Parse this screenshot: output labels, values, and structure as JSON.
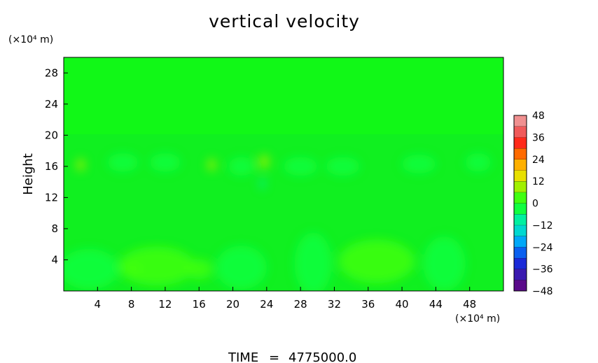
{
  "chart_data": {
    "type": "heatmap",
    "title": "vertical velocity",
    "ylabel": "Height",
    "xlabel": "",
    "x_unit": "(×10⁴ m)",
    "y_unit": "(×10⁴ m)",
    "xlim": [
      0,
      52
    ],
    "ylim": [
      0,
      30
    ],
    "x_ticks": [
      "4",
      "8",
      "12",
      "16",
      "20",
      "24",
      "28",
      "32",
      "36",
      "40",
      "44",
      "48"
    ],
    "x_tick_values": [
      4,
      8,
      12,
      16,
      20,
      24,
      28,
      32,
      36,
      40,
      44,
      48
    ],
    "y_ticks": [
      "4",
      "8",
      "12",
      "16",
      "20",
      "24",
      "28"
    ],
    "y_tick_values": [
      4,
      8,
      12,
      16,
      20,
      24,
      28
    ],
    "colorbar": {
      "min": -48,
      "max": 48,
      "labels": [
        "48",
        "36",
        "24",
        "12",
        "0",
        "−12",
        "−24",
        "−36",
        "−48"
      ],
      "label_values": [
        48,
        36,
        24,
        12,
        0,
        -12,
        -24,
        -36,
        -48
      ],
      "colors": [
        "#5a0a8a",
        "#3a1ab0",
        "#1a2ad8",
        "#0a60f0",
        "#00a8f8",
        "#00d8d0",
        "#00f0a0",
        "#10ff40",
        "#40ff10",
        "#a0f000",
        "#e8e000",
        "#ffb000",
        "#ff6a00",
        "#ff2a1a",
        "#f05a5a",
        "#f09090"
      ]
    },
    "features": [
      {
        "x": 3,
        "y": 2.8,
        "sx": 3.5,
        "sy": 2.6,
        "value": -4
      },
      {
        "x": 11,
        "y": 3.2,
        "sx": 4.5,
        "sy": 2.5,
        "value": 4
      },
      {
        "x": 8,
        "y": 2.8,
        "sx": 1.2,
        "sy": 1.0,
        "value": 5
      },
      {
        "x": 16,
        "y": 2.8,
        "sx": 1.6,
        "sy": 1.3,
        "value": 4
      },
      {
        "x": 21,
        "y": 3.0,
        "sx": 3.0,
        "sy": 2.8,
        "value": -3
      },
      {
        "x": 29.5,
        "y": 3.5,
        "sx": 2.2,
        "sy": 4.0,
        "value": -6
      },
      {
        "x": 37,
        "y": 3.8,
        "sx": 4.5,
        "sy": 2.8,
        "value": 4
      },
      {
        "x": 45,
        "y": 3.5,
        "sx": 2.5,
        "sy": 3.5,
        "value": -4
      },
      {
        "x": 2,
        "y": 16.2,
        "sx": 0.5,
        "sy": 0.8,
        "value": 9
      },
      {
        "x": 17.5,
        "y": 16.2,
        "sx": 0.5,
        "sy": 0.8,
        "value": 10
      },
      {
        "x": 23.7,
        "y": 16.6,
        "sx": 0.6,
        "sy": 0.9,
        "value": 11
      },
      {
        "x": 23.5,
        "y": 13.8,
        "sx": 0.3,
        "sy": 0.7,
        "value": -8
      },
      {
        "x": 7,
        "y": 16.5,
        "sx": 1.8,
        "sy": 1.2,
        "value": -3
      },
      {
        "x": 12,
        "y": 16.5,
        "sx": 1.8,
        "sy": 1.2,
        "value": -3
      },
      {
        "x": 21,
        "y": 16.0,
        "sx": 1.5,
        "sy": 1.2,
        "value": -3
      },
      {
        "x": 28,
        "y": 16.0,
        "sx": 2.0,
        "sy": 1.2,
        "value": -3
      },
      {
        "x": 33,
        "y": 16.0,
        "sx": 2.0,
        "sy": 1.2,
        "value": -3
      },
      {
        "x": 42,
        "y": 16.3,
        "sx": 2.0,
        "sy": 1.2,
        "value": -3
      },
      {
        "x": 49,
        "y": 16.5,
        "sx": 1.5,
        "sy": 1.2,
        "value": -3
      }
    ]
  },
  "footer": {
    "time_label": "TIME",
    "time_eq": "=",
    "time_value": "4775000.0"
  }
}
